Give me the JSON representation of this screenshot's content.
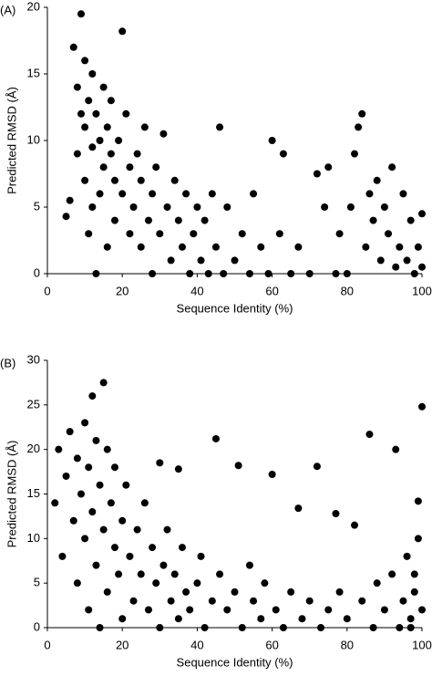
{
  "chart_data": [
    {
      "type": "scatter",
      "panel_label": "(A)",
      "xlabel": "Sequence Identity (%)",
      "ylabel": "Predicted RMSD (Å)",
      "color": "#000000",
      "xlim": [
        0,
        100
      ],
      "ylim": [
        0,
        20
      ],
      "xticks": [
        0,
        20,
        40,
        60,
        80,
        100
      ],
      "yticks": [
        0,
        5,
        10,
        15,
        20
      ],
      "x": [
        5,
        6,
        7,
        8,
        8,
        9,
        9,
        10,
        10,
        10,
        11,
        11,
        12,
        12,
        12,
        13,
        13,
        14,
        14,
        15,
        15,
        16,
        16,
        17,
        17,
        18,
        18,
        19,
        20,
        20,
        21,
        22,
        22,
        23,
        24,
        25,
        25,
        26,
        27,
        28,
        28,
        29,
        30,
        31,
        32,
        33,
        34,
        35,
        36,
        37,
        38,
        39,
        40,
        41,
        42,
        43,
        44,
        45,
        46,
        47,
        48,
        50,
        52,
        54,
        55,
        57,
        59,
        60,
        62,
        63,
        65,
        67,
        70,
        72,
        74,
        75,
        77,
        78,
        80,
        81,
        82,
        83,
        84,
        85,
        86,
        87,
        88,
        89,
        90,
        91,
        92,
        93,
        94,
        95,
        96,
        97,
        98,
        99,
        100,
        100
      ],
      "values": [
        4.3,
        5.5,
        17,
        14,
        9,
        19.5,
        12,
        16,
        7,
        11,
        13,
        3,
        15,
        9.5,
        5,
        12,
        0,
        10,
        6,
        14,
        8,
        11,
        2,
        9,
        13,
        7,
        4,
        10,
        6,
        18.2,
        12,
        3,
        8,
        5,
        9,
        2,
        7,
        11,
        4,
        6,
        0,
        8,
        3,
        10.5,
        5,
        1,
        7,
        4,
        2,
        6,
        0,
        3,
        5,
        1,
        4,
        0,
        6,
        2,
        11,
        0,
        5,
        1,
        3,
        0,
        6,
        2,
        0,
        10,
        3,
        9,
        0,
        2,
        0,
        7.5,
        5,
        8,
        0,
        3,
        0,
        5,
        9,
        11,
        12,
        2,
        6,
        4,
        7,
        1,
        5,
        3,
        8,
        0.5,
        2,
        6,
        1,
        4,
        0,
        2,
        0.5,
        4.5
      ]
    },
    {
      "type": "scatter",
      "panel_label": "(B)",
      "xlabel": "Sequence Identity (%)",
      "ylabel": "Predicted RMSD (Å)",
      "color": "#000000",
      "xlim": [
        0,
        100
      ],
      "ylim": [
        0,
        30
      ],
      "xticks": [
        0,
        20,
        40,
        60,
        80,
        100
      ],
      "yticks": [
        0,
        5,
        10,
        15,
        20,
        25,
        30
      ],
      "x": [
        2,
        3,
        4,
        5,
        6,
        7,
        8,
        8,
        9,
        10,
        10,
        11,
        11,
        12,
        12,
        13,
        13,
        14,
        14,
        15,
        15,
        16,
        16,
        17,
        18,
        18,
        19,
        20,
        20,
        21,
        22,
        23,
        24,
        25,
        26,
        27,
        28,
        29,
        30,
        30,
        31,
        32,
        33,
        34,
        35,
        35,
        36,
        37,
        38,
        40,
        41,
        42,
        44,
        45,
        46,
        48,
        50,
        51,
        52,
        54,
        55,
        57,
        58,
        60,
        61,
        63,
        65,
        67,
        68,
        70,
        72,
        73,
        75,
        77,
        78,
        80,
        82,
        84,
        86,
        87,
        88,
        90,
        92,
        93,
        94,
        95,
        96,
        97,
        98,
        99,
        100,
        100,
        99,
        98,
        97
      ],
      "values": [
        14,
        20,
        8,
        17,
        22,
        12,
        19,
        5,
        15,
        23,
        10,
        18,
        2,
        26,
        13,
        21,
        7,
        16,
        0,
        27.5,
        11,
        20,
        4,
        14,
        9,
        18,
        6,
        12,
        1,
        16,
        8,
        3,
        11,
        6,
        14,
        2,
        9,
        5,
        18.5,
        0,
        7,
        11,
        3,
        6,
        17.8,
        1,
        9,
        4,
        2,
        5,
        8,
        0,
        3,
        21.2,
        6,
        2,
        4,
        18.2,
        0,
        7,
        3,
        1,
        5,
        17.2,
        2,
        0,
        4,
        13.4,
        1,
        3,
        18.1,
        0,
        2,
        12.8,
        4,
        1,
        11.5,
        3,
        21.7,
        0,
        5,
        2,
        6,
        20,
        0,
        3,
        8,
        1,
        4,
        14.2,
        24.8,
        2,
        10,
        6,
        0
      ]
    }
  ]
}
